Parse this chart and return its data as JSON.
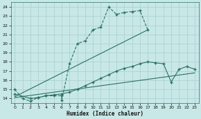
{
  "background_color": "#c8e8e8",
  "grid_color": "#a8cccc",
  "line_color": "#2a7060",
  "xlabel": "Humidex (Indice chaleur)",
  "ylim": [
    13.5,
    24.5
  ],
  "xlim": [
    -0.5,
    23.5
  ],
  "yticks": [
    14,
    15,
    16,
    17,
    18,
    19,
    20,
    21,
    22,
    23,
    24
  ],
  "xticks": [
    0,
    1,
    2,
    3,
    4,
    5,
    6,
    7,
    8,
    9,
    10,
    11,
    12,
    13,
    14,
    15,
    16,
    17,
    18,
    19,
    20,
    21,
    22,
    23
  ],
  "series1_x": [
    0,
    1,
    2,
    3,
    4,
    5,
    6,
    6,
    7,
    8,
    9,
    10,
    11,
    12,
    13,
    14,
    15,
    16,
    17
  ],
  "series1_y": [
    15.0,
    14.0,
    13.7,
    14.1,
    14.3,
    14.3,
    14.3,
    13.8,
    17.8,
    20.0,
    20.3,
    21.5,
    21.8,
    24.0,
    23.2,
    23.4,
    23.5,
    23.6,
    21.5
  ],
  "series2_x": [
    0,
    2,
    3,
    4,
    5,
    6,
    7,
    8,
    9,
    10,
    11,
    12,
    13,
    14,
    15,
    16,
    17,
    18,
    19,
    20,
    21,
    22,
    23
  ],
  "series2_y": [
    14.5,
    14.0,
    14.1,
    14.3,
    14.4,
    14.5,
    14.7,
    15.0,
    15.4,
    15.8,
    16.2,
    16.6,
    17.0,
    17.3,
    17.5,
    17.8,
    18.0,
    17.9,
    17.8,
    15.8,
    17.2,
    17.5,
    17.2
  ],
  "series3_x": [
    0,
    17
  ],
  "series3_y": [
    14.2,
    21.5
  ],
  "series4_x": [
    0,
    23
  ],
  "series4_y": [
    14.1,
    16.8
  ]
}
